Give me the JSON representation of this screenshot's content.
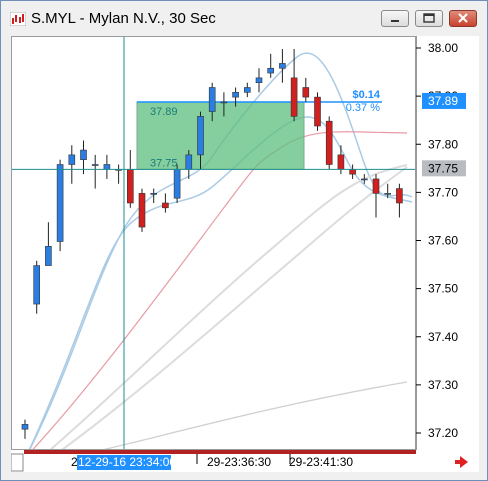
{
  "window": {
    "title": "S.MYL - Mylan N.V., 30 Sec",
    "buttons": [
      "minimize",
      "restore",
      "close"
    ]
  },
  "price_axis": {
    "ticks": [
      "38.00",
      "37.90",
      "37.80",
      "37.70",
      "37.60",
      "37.50",
      "37.40",
      "37.30",
      "37.20"
    ],
    "tick_values": [
      38.0,
      37.9,
      37.8,
      37.7,
      37.6,
      37.5,
      37.4,
      37.3,
      37.2
    ],
    "labels": [
      {
        "text": "37.89",
        "value": 37.89,
        "bg": "#1e90ff",
        "fg": "#ffffff"
      },
      {
        "text": "37.75",
        "value": 37.75,
        "bg": "#b9bdc2",
        "fg": "#000000"
      }
    ],
    "range": [
      37.17,
      38.04
    ]
  },
  "time_axis": {
    "ticks": [
      "29-23:36:30",
      "29-23:41:30"
    ],
    "crosshair_label": "12-29-16 23:34:00",
    "leading_label": "2"
  },
  "measurement": {
    "start_price": "37.75",
    "end_price": "37.89",
    "change": "$0.14",
    "change_pct": "0.37 %",
    "box_color": "#5cbf7e"
  },
  "colors": {
    "up_candle": "#2a7de1",
    "down_candle": "#d02020",
    "bollinger": "#a9cbe6",
    "ma_red": "#e89aa4",
    "ma_light": "#dcdcdc",
    "crosshair": "#1c8f8f"
  },
  "chart_data": {
    "type": "candlestick",
    "candles": [
      {
        "o": 37.21,
        "h": 37.23,
        "l": 37.19,
        "c": 37.22
      },
      {
        "o": 37.47,
        "h": 37.56,
        "l": 37.45,
        "c": 37.55
      },
      {
        "o": 37.55,
        "h": 37.64,
        "l": 37.55,
        "c": 37.59
      },
      {
        "o": 37.6,
        "h": 37.77,
        "l": 37.58,
        "c": 37.76
      },
      {
        "o": 37.76,
        "h": 37.8,
        "l": 37.72,
        "c": 37.78
      },
      {
        "o": 37.77,
        "h": 37.81,
        "l": 37.74,
        "c": 37.79
      },
      {
        "o": 37.76,
        "h": 37.78,
        "l": 37.71,
        "c": 37.76
      },
      {
        "o": 37.75,
        "h": 37.78,
        "l": 37.73,
        "c": 37.76
      },
      {
        "o": 37.75,
        "h": 37.76,
        "l": 37.72,
        "c": 37.75
      },
      {
        "o": 37.75,
        "h": 37.79,
        "l": 37.67,
        "c": 37.68
      },
      {
        "o": 37.7,
        "h": 37.71,
        "l": 37.62,
        "c": 37.63
      },
      {
        "o": 37.7,
        "h": 37.71,
        "l": 37.68,
        "c": 37.7
      },
      {
        "o": 37.68,
        "h": 37.7,
        "l": 37.66,
        "c": 37.67
      },
      {
        "o": 37.69,
        "h": 37.76,
        "l": 37.68,
        "c": 37.75
      },
      {
        "o": 37.75,
        "h": 37.79,
        "l": 37.73,
        "c": 37.78
      },
      {
        "o": 37.78,
        "h": 37.87,
        "l": 37.75,
        "c": 37.86
      },
      {
        "o": 37.87,
        "h": 37.93,
        "l": 37.85,
        "c": 37.92
      },
      {
        "o": 37.89,
        "h": 37.91,
        "l": 37.86,
        "c": 37.89
      },
      {
        "o": 37.9,
        "h": 37.92,
        "l": 37.88,
        "c": 37.91
      },
      {
        "o": 37.91,
        "h": 37.93,
        "l": 37.9,
        "c": 37.92
      },
      {
        "o": 37.93,
        "h": 37.96,
        "l": 37.91,
        "c": 37.94
      },
      {
        "o": 37.95,
        "h": 37.99,
        "l": 37.94,
        "c": 37.96
      },
      {
        "o": 37.96,
        "h": 38.0,
        "l": 37.93,
        "c": 37.97
      },
      {
        "o": 37.94,
        "h": 38.0,
        "l": 37.85,
        "c": 37.86
      },
      {
        "o": 37.92,
        "h": 37.94,
        "l": 37.89,
        "c": 37.9
      },
      {
        "o": 37.9,
        "h": 37.91,
        "l": 37.83,
        "c": 37.84
      },
      {
        "o": 37.85,
        "h": 37.86,
        "l": 37.75,
        "c": 37.76
      },
      {
        "o": 37.78,
        "h": 37.8,
        "l": 37.74,
        "c": 37.75
      },
      {
        "o": 37.75,
        "h": 37.76,
        "l": 37.73,
        "c": 37.74
      },
      {
        "o": 37.73,
        "h": 37.74,
        "l": 37.72,
        "c": 37.73
      },
      {
        "o": 37.73,
        "h": 37.74,
        "l": 37.65,
        "c": 37.7
      },
      {
        "o": 37.7,
        "h": 37.72,
        "l": 37.69,
        "c": 37.7
      },
      {
        "o": 37.71,
        "h": 37.72,
        "l": 37.65,
        "c": 37.68
      }
    ],
    "y_range": [
      37.17,
      38.04
    ],
    "grid": false
  }
}
